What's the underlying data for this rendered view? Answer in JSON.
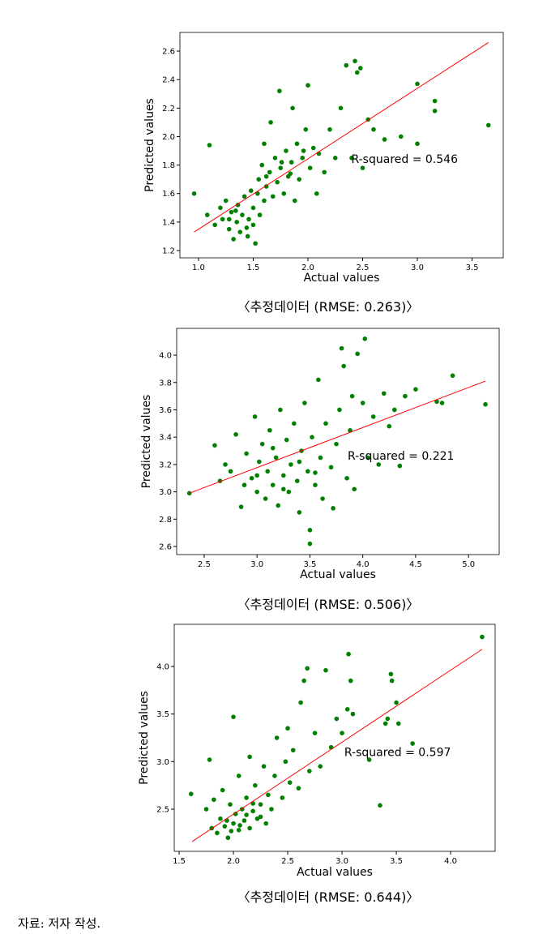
{
  "chart_data": [
    {
      "type": "scatter",
      "xlabel": "Actual values",
      "ylabel": "Predicted values",
      "annotation": "R-squared = 0.546",
      "caption": "〈추정데이터 (RMSE: 0.263)〉",
      "xlim": [
        0.83,
        3.785
      ],
      "ylim": [
        1.149,
        2.731
      ],
      "xticks": [
        {
          "value": 1,
          "label": "1.0"
        },
        1.5,
        {
          "value": 2,
          "label": "2.0"
        },
        2.5,
        {
          "value": 3,
          "label": "3.0"
        },
        3.5
      ],
      "yticks": [
        1.2,
        1.4,
        1.6,
        1.8,
        {
          "value": 2,
          "label": "2.0"
        },
        2.2,
        2.4,
        2.6
      ],
      "points": {
        "color": "#008000",
        "x": [
          0.96,
          1.1,
          1.08,
          1.15,
          1.2,
          1.22,
          1.25,
          1.28,
          1.3,
          1.32,
          1.35,
          1.36,
          1.38,
          1.4,
          1.42,
          1.45,
          1.46,
          1.48,
          1.5,
          1.5,
          1.52,
          1.55,
          1.56,
          1.58,
          1.6,
          1.6,
          1.62,
          1.65,
          1.66,
          1.68,
          1.7,
          1.72,
          1.74,
          1.75,
          1.78,
          1.8,
          1.82,
          1.85,
          1.86,
          1.88,
          1.9,
          1.92,
          1.95,
          1.98,
          2.0,
          2.02,
          2.05,
          2.08,
          2.1,
          2.15,
          2.2,
          2.25,
          2.3,
          2.35,
          2.4,
          2.43,
          2.45,
          2.48,
          2.5,
          2.55,
          2.6,
          2.7,
          2.85,
          3.0,
          3.0,
          3.16,
          3.16,
          3.65,
          1.34,
          1.44,
          1.28,
          1.62,
          1.54,
          1.76,
          1.84,
          1.96
        ],
        "values": [
          1.6,
          1.94,
          1.45,
          1.38,
          1.5,
          1.42,
          1.55,
          1.35,
          1.47,
          1.28,
          1.4,
          1.52,
          1.33,
          1.45,
          1.58,
          1.3,
          1.42,
          1.62,
          1.38,
          1.5,
          1.25,
          1.7,
          1.45,
          1.8,
          1.55,
          1.95,
          1.65,
          1.75,
          2.1,
          1.58,
          1.85,
          1.68,
          2.32,
          1.78,
          1.6,
          1.9,
          1.72,
          1.82,
          2.2,
          1.55,
          1.95,
          1.7,
          1.85,
          2.05,
          2.36,
          1.78,
          1.92,
          1.6,
          1.88,
          1.75,
          2.05,
          1.85,
          2.2,
          2.5,
          1.85,
          2.53,
          2.45,
          2.48,
          1.78,
          2.12,
          2.05,
          1.98,
          2.0,
          1.95,
          2.37,
          2.25,
          2.18,
          2.08,
          1.48,
          1.36,
          1.42,
          1.72,
          1.6,
          1.82,
          1.74,
          1.9
        ]
      },
      "fit_line": {
        "color": "#ff0000",
        "x": [
          0.96,
          3.65
        ],
        "values": [
          1.33,
          2.66
        ]
      }
    },
    {
      "type": "scatter",
      "xlabel": "Actual values",
      "ylabel": "Predicted values",
      "annotation": "R-squared = 0.221",
      "caption": "〈추정데이터 (RMSE: 0.506)〉",
      "xlim": [
        2.24,
        5.29
      ],
      "ylim": [
        2.541,
        4.196
      ],
      "xticks": [
        2.5,
        {
          "value": 3,
          "label": "3.0"
        },
        3.5,
        {
          "value": 4,
          "label": "4.0"
        },
        4.5,
        {
          "value": 5,
          "label": "5.0"
        }
      ],
      "yticks": [
        2.6,
        2.8,
        {
          "value": 3,
          "label": "3.0"
        },
        3.2,
        3.4,
        3.6,
        3.8,
        {
          "value": 4,
          "label": "4.0"
        }
      ],
      "points": {
        "color": "#008000",
        "x": [
          2.36,
          2.6,
          2.65,
          2.7,
          2.75,
          2.8,
          2.85,
          2.88,
          2.9,
          2.95,
          2.98,
          3.0,
          3.02,
          3.05,
          3.08,
          3.1,
          3.12,
          3.15,
          3.18,
          3.2,
          3.22,
          3.25,
          3.28,
          3.3,
          3.32,
          3.35,
          3.38,
          3.4,
          3.42,
          3.45,
          3.48,
          3.5,
          3.5,
          3.52,
          3.55,
          3.58,
          3.6,
          3.62,
          3.65,
          3.7,
          3.72,
          3.75,
          3.78,
          3.8,
          3.82,
          3.85,
          3.88,
          3.9,
          3.92,
          3.95,
          4.0,
          4.02,
          4.05,
          4.1,
          4.15,
          4.2,
          4.25,
          4.3,
          4.35,
          4.4,
          4.5,
          4.7,
          4.75,
          4.85,
          5.16,
          3.0,
          3.25,
          3.4,
          3.15,
          3.55
        ],
        "values": [
          2.99,
          3.34,
          3.08,
          3.2,
          3.15,
          3.42,
          2.89,
          3.05,
          3.28,
          3.1,
          3.55,
          3.0,
          3.22,
          3.35,
          2.95,
          3.15,
          3.45,
          3.05,
          3.25,
          2.9,
          3.6,
          3.12,
          3.38,
          3.0,
          3.2,
          3.5,
          3.08,
          2.85,
          3.3,
          3.65,
          3.15,
          2.62,
          2.72,
          3.4,
          3.05,
          3.82,
          3.25,
          2.95,
          3.5,
          3.18,
          2.88,
          3.35,
          3.6,
          4.05,
          3.92,
          3.1,
          3.45,
          3.7,
          3.02,
          4.01,
          3.65,
          4.12,
          3.25,
          3.55,
          3.2,
          3.72,
          3.48,
          3.6,
          3.19,
          3.7,
          3.75,
          3.66,
          3.65,
          3.85,
          3.64,
          3.12,
          3.02,
          3.22,
          3.32,
          3.14
        ]
      },
      "fit_line": {
        "color": "#ff0000",
        "x": [
          2.36,
          5.16
        ],
        "values": [
          2.99,
          3.81
        ]
      }
    },
    {
      "type": "scatter",
      "xlabel": "Actual values",
      "ylabel": "Predicted values",
      "annotation": "R-squared = 0.597",
      "caption": "〈추정데이터 (RMSE: 0.644)〉",
      "xlim": [
        1.455,
        4.41
      ],
      "ylim": [
        2.057,
        4.443
      ],
      "xticks": [
        1.5,
        {
          "value": 2,
          "label": "2.0"
        },
        2.5,
        {
          "value": 3,
          "label": "3.0"
        },
        3.5,
        {
          "value": 4,
          "label": "4.0"
        }
      ],
      "yticks": [
        2.5,
        {
          "value": 3,
          "label": "3.0"
        },
        3.5,
        {
          "value": 4,
          "label": "4.0"
        }
      ],
      "points": {
        "color": "#008000",
        "x": [
          1.61,
          1.75,
          1.78,
          1.8,
          1.82,
          1.85,
          1.88,
          1.9,
          1.92,
          1.95,
          1.97,
          2.0,
          2.0,
          2.02,
          2.05,
          2.05,
          2.08,
          2.1,
          2.12,
          2.15,
          2.15,
          2.18,
          2.2,
          2.22,
          2.25,
          2.28,
          2.3,
          2.32,
          2.35,
          2.38,
          2.4,
          2.45,
          2.48,
          2.5,
          2.52,
          2.55,
          2.6,
          2.62,
          2.65,
          2.68,
          2.7,
          2.75,
          2.8,
          2.85,
          2.9,
          2.95,
          3.0,
          3.05,
          3.06,
          3.08,
          3.1,
          3.25,
          3.35,
          3.4,
          3.42,
          3.45,
          3.46,
          3.5,
          3.52,
          3.65,
          4.29,
          1.98,
          2.06,
          2.12,
          1.94,
          2.18,
          2.25
        ],
        "values": [
          2.66,
          2.5,
          3.02,
          2.3,
          2.6,
          2.25,
          2.4,
          2.7,
          2.32,
          2.2,
          2.55,
          3.47,
          2.35,
          2.45,
          2.28,
          2.85,
          2.5,
          2.38,
          2.62,
          2.3,
          3.05,
          2.48,
          2.75,
          2.4,
          2.55,
          2.95,
          2.35,
          2.65,
          2.5,
          2.85,
          3.25,
          2.62,
          3.0,
          3.35,
          2.78,
          3.12,
          2.72,
          3.62,
          3.85,
          3.98,
          2.9,
          3.3,
          2.95,
          3.96,
          3.15,
          3.45,
          3.3,
          3.55,
          4.13,
          3.85,
          3.5,
          3.02,
          2.54,
          3.4,
          3.45,
          3.92,
          3.85,
          3.62,
          3.4,
          3.19,
          4.31,
          2.27,
          2.33,
          2.44,
          2.38,
          2.56,
          2.42
        ]
      },
      "fit_line": {
        "color": "#ff0000",
        "x": [
          1.62,
          4.29
        ],
        "values": [
          2.16,
          4.18
        ]
      }
    }
  ],
  "source": "자료: 저자 작성."
}
